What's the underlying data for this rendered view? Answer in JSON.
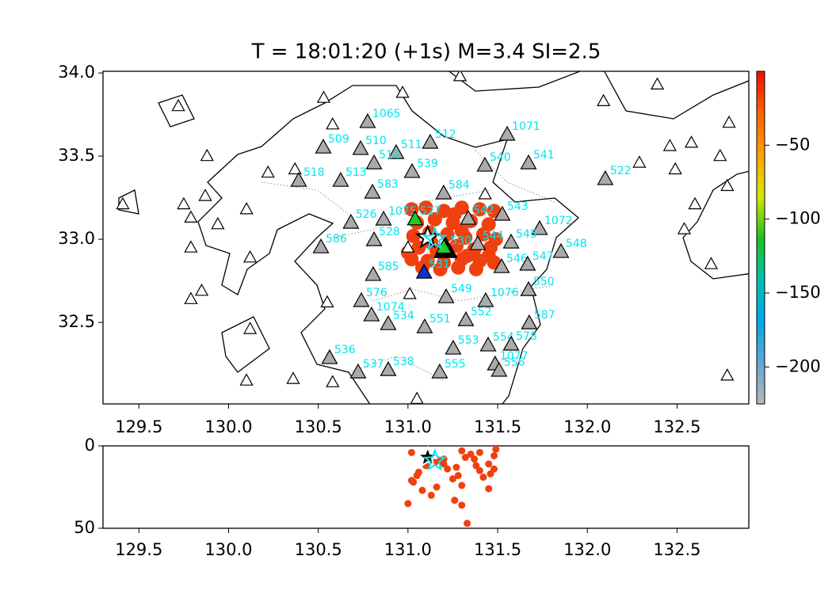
{
  "chart_data": {
    "type": "map",
    "title": "T = 18:01:20 (+1s) M=3.4 SI=2.5",
    "xlim": [
      129.3,
      132.9
    ],
    "ylim": [
      32.01,
      34.01
    ],
    "xticks": [
      129.5,
      {
        "value": 130,
        "label": "130.0"
      },
      130.5,
      {
        "value": 131,
        "label": "131.0"
      },
      131.5,
      {
        "value": 132,
        "label": "132.0"
      },
      132.5
    ],
    "yticks": [
      32.5,
      {
        "value": 33,
        "label": "33.0"
      },
      33.5,
      {
        "value": 34,
        "label": "34.0"
      }
    ],
    "station_color": "#aaaaaa",
    "label_color": "#00e5ee",
    "stations": [
      {
        "label": "1065",
        "lon": 130.775,
        "lat": 33.705
      },
      {
        "label": "509",
        "lon": 130.528,
        "lat": 33.552
      },
      {
        "label": "510",
        "lon": 130.736,
        "lat": 33.543
      },
      {
        "label": "511",
        "lon": 130.934,
        "lat": 33.519
      },
      {
        "label": "512",
        "lon": 131.124,
        "lat": 33.581
      },
      {
        "label": "514",
        "lon": 130.811,
        "lat": 33.457
      },
      {
        "label": "539",
        "lon": 131.023,
        "lat": 33.405
      },
      {
        "label": "518",
        "lon": 130.391,
        "lat": 33.352
      },
      {
        "label": "513",
        "lon": 130.625,
        "lat": 33.352
      },
      {
        "label": "583",
        "lon": 130.802,
        "lat": 33.281
      },
      {
        "label": "584",
        "lon": 131.199,
        "lat": 33.276
      },
      {
        "label": "540",
        "lon": 131.429,
        "lat": 33.443
      },
      {
        "label": "541",
        "lon": 131.672,
        "lat": 33.457
      },
      {
        "label": "1071",
        "lon": 131.553,
        "lat": 33.629
      },
      {
        "label": "522",
        "lon": 132.1,
        "lat": 33.362
      },
      {
        "label": "526",
        "lon": 130.682,
        "lat": 33.1
      },
      {
        "label": "1075",
        "lon": 130.864,
        "lat": 33.119
      },
      {
        "label": "542",
        "lon": 131.336,
        "lat": 33.124
      },
      {
        "label": "543",
        "lon": 131.526,
        "lat": 33.148
      },
      {
        "label": "1072",
        "lon": 131.734,
        "lat": 33.062
      },
      {
        "label": "586",
        "lon": 130.515,
        "lat": 32.952
      },
      {
        "label": "528",
        "lon": 130.811,
        "lat": 32.995
      },
      {
        "label": "544",
        "lon": 131.389,
        "lat": 32.971
      },
      {
        "label": "545",
        "lon": 131.575,
        "lat": 32.981
      },
      {
        "label": "548",
        "lon": 131.853,
        "lat": 32.924
      },
      {
        "label": "546",
        "lon": 131.522,
        "lat": 32.833
      },
      {
        "label": "547",
        "lon": 131.667,
        "lat": 32.848
      },
      {
        "label": "585",
        "lon": 130.806,
        "lat": 32.786
      },
      {
        "label": "550",
        "lon": 131.672,
        "lat": 32.695
      },
      {
        "label": "549",
        "lon": 131.213,
        "lat": 32.652
      },
      {
        "label": "1076",
        "lon": 131.433,
        "lat": 32.629
      },
      {
        "label": "576",
        "lon": 130.74,
        "lat": 32.629
      },
      {
        "label": "1074",
        "lon": 130.797,
        "lat": 32.543
      },
      {
        "label": "534",
        "lon": 130.89,
        "lat": 32.49
      },
      {
        "label": "551",
        "lon": 131.093,
        "lat": 32.471
      },
      {
        "label": "552",
        "lon": 131.323,
        "lat": 32.514
      },
      {
        "label": "587",
        "lon": 131.676,
        "lat": 32.495
      },
      {
        "label": "553",
        "lon": 131.252,
        "lat": 32.343
      },
      {
        "label": "554",
        "lon": 131.447,
        "lat": 32.362
      },
      {
        "label": "578",
        "lon": 131.575,
        "lat": 32.367
      },
      {
        "label": "1077",
        "lon": 131.486,
        "lat": 32.248
      },
      {
        "label": "556",
        "lon": 131.508,
        "lat": 32.21
      },
      {
        "label": "536",
        "lon": 130.563,
        "lat": 32.286
      },
      {
        "label": "537",
        "lon": 130.722,
        "lat": 32.2
      },
      {
        "label": "538",
        "lon": 130.89,
        "lat": 32.214
      },
      {
        "label": "555",
        "lon": 131.177,
        "lat": 32.2
      }
    ],
    "open_stations": [
      {
        "lon": 129.72,
        "lat": 33.8
      },
      {
        "lon": 130.53,
        "lat": 33.85
      },
      {
        "lon": 130.97,
        "lat": 33.88
      },
      {
        "lon": 131.29,
        "lat": 33.98
      },
      {
        "lon": 130.58,
        "lat": 33.69
      },
      {
        "lon": 132.39,
        "lat": 33.93
      },
      {
        "lon": 132.09,
        "lat": 33.83
      },
      {
        "lon": 132.46,
        "lat": 33.56
      },
      {
        "lon": 132.58,
        "lat": 33.58
      },
      {
        "lon": 132.79,
        "lat": 33.7
      },
      {
        "lon": 132.74,
        "lat": 33.5
      },
      {
        "lon": 132.49,
        "lat": 33.42
      },
      {
        "lon": 132.78,
        "lat": 33.32
      },
      {
        "lon": 132.6,
        "lat": 33.21
      },
      {
        "lon": 132.54,
        "lat": 33.06
      },
      {
        "lon": 132.29,
        "lat": 33.46
      },
      {
        "lon": 129.88,
        "lat": 33.5
      },
      {
        "lon": 129.87,
        "lat": 33.26
      },
      {
        "lon": 129.75,
        "lat": 33.21
      },
      {
        "lon": 129.79,
        "lat": 33.13
      },
      {
        "lon": 129.94,
        "lat": 33.09
      },
      {
        "lon": 130.1,
        "lat": 33.18
      },
      {
        "lon": 130.22,
        "lat": 33.4
      },
      {
        "lon": 130.37,
        "lat": 33.42
      },
      {
        "lon": 130.12,
        "lat": 32.89
      },
      {
        "lon": 129.79,
        "lat": 32.95
      },
      {
        "lon": 129.85,
        "lat": 32.69
      },
      {
        "lon": 129.79,
        "lat": 32.64
      },
      {
        "lon": 129.41,
        "lat": 33.21
      },
      {
        "lon": 130.12,
        "lat": 32.46
      },
      {
        "lon": 130.55,
        "lat": 32.62
      },
      {
        "lon": 130.1,
        "lat": 32.15
      },
      {
        "lon": 130.36,
        "lat": 32.16
      },
      {
        "lon": 130.58,
        "lat": 32.14
      },
      {
        "lon": 131.05,
        "lat": 32.04
      },
      {
        "lon": 131.43,
        "lat": 33.27
      },
      {
        "lon": 131.01,
        "lat": 32.67
      },
      {
        "lon": 131.0,
        "lat": 32.95
      },
      {
        "lon": 132.69,
        "lat": 32.85
      },
      {
        "lon": 132.78,
        "lat": 32.18
      }
    ],
    "highlight_stations": [
      {
        "label": "527",
        "lon": 131.04,
        "lat": 33.12,
        "color": "#22cc22"
      },
      {
        "label": "530",
        "lon": 131.21,
        "lat": 32.94,
        "color": "#000000"
      },
      {
        "label": null,
        "lon": 131.2,
        "lat": 32.95,
        "color": "#22cc22"
      },
      {
        "label": "531",
        "lon": 131.09,
        "lat": 32.8,
        "color": "#1030cc"
      }
    ],
    "events": {
      "color": "#f04010",
      "points": [
        [
          131.02,
          33.18,
          4
        ],
        [
          131.1,
          33.19,
          12
        ],
        [
          131.2,
          33.17,
          8
        ],
        [
          131.3,
          33.19,
          3
        ],
        [
          131.4,
          33.18,
          15
        ],
        [
          131.48,
          33.17,
          6
        ],
        [
          131.05,
          33.1,
          18
        ],
        [
          131.15,
          33.12,
          10
        ],
        [
          131.25,
          33.1,
          20
        ],
        [
          131.35,
          33.11,
          5
        ],
        [
          131.45,
          33.09,
          11
        ],
        [
          131.03,
          33.02,
          22
        ],
        [
          131.12,
          33.04,
          9
        ],
        [
          131.22,
          33.03,
          14
        ],
        [
          131.32,
          33.01,
          7
        ],
        [
          131.42,
          33.03,
          19
        ],
        [
          131.49,
          33.0,
          2
        ],
        [
          131.06,
          32.95,
          16
        ],
        [
          131.16,
          32.93,
          25
        ],
        [
          131.27,
          32.96,
          13
        ],
        [
          131.37,
          32.94,
          8
        ],
        [
          131.46,
          32.95,
          17
        ],
        [
          131.02,
          32.88,
          21
        ],
        [
          131.11,
          32.87,
          6
        ],
        [
          131.2,
          32.86,
          11
        ],
        [
          131.3,
          32.88,
          24
        ],
        [
          131.4,
          32.87,
          4
        ],
        [
          131.48,
          32.86,
          14
        ],
        [
          131.08,
          32.83,
          27
        ],
        [
          131.18,
          32.82,
          9
        ],
        [
          131.28,
          32.83,
          18
        ],
        [
          131.38,
          32.82,
          12
        ],
        [
          131.45,
          32.9,
          26
        ],
        [
          131.0,
          32.92,
          35
        ],
        [
          131.13,
          32.98,
          30
        ],
        [
          131.3,
          33.05,
          36
        ],
        [
          131.33,
          32.9,
          47
        ],
        [
          131.26,
          33.15,
          33
        ]
      ]
    },
    "epicenters": [
      {
        "lon": 131.11,
        "lat": 33.01,
        "depth": 7,
        "color": "#000000"
      },
      {
        "lon": 131.15,
        "lat": 33.0,
        "depth": 9,
        "color": "#00e5ee"
      }
    ],
    "depth_panel": {
      "ylim": [
        0,
        50
      ],
      "yticks": [
        0,
        50
      ]
    },
    "colorbar": {
      "lim": [
        -225,
        0
      ],
      "ticks": [
        {
          "value": -50,
          "label": "−50"
        },
        {
          "value": -100,
          "label": "−100"
        },
        {
          "value": -150,
          "label": "−150"
        },
        {
          "value": -200,
          "label": "−200"
        }
      ],
      "colors": [
        "#b8b8b8",
        "#60a8d0",
        "#00a8e8",
        "#00c0b0",
        "#20c020",
        "#d8e800",
        "#ffa000",
        "#ff6000",
        "#ee1000"
      ]
    }
  }
}
